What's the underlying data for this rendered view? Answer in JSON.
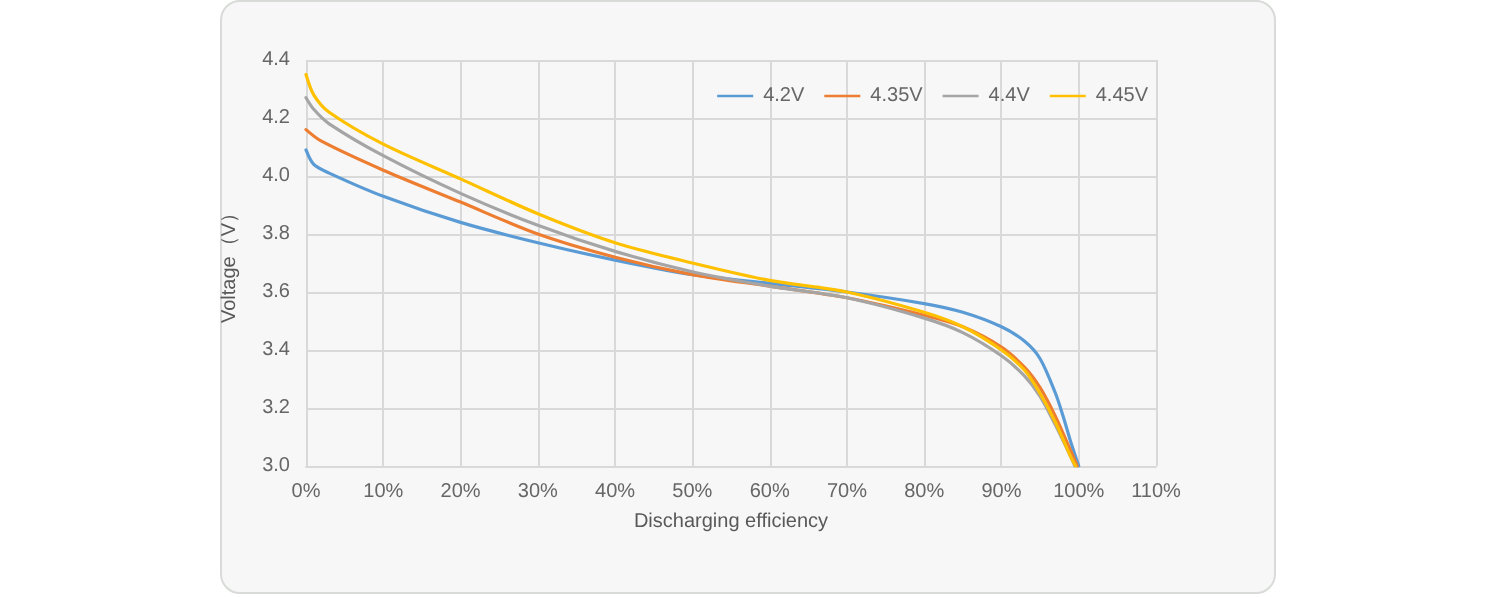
{
  "chart_data": {
    "type": "line",
    "xlabel": "Discharging efficiency",
    "ylabel": "Voltage（V）",
    "xlim": [
      0,
      110
    ],
    "xticks": [
      {
        "value": 0,
        "label": "0%"
      },
      {
        "value": 10,
        "label": "10%"
      },
      {
        "value": 20,
        "label": "20%"
      },
      {
        "value": 30,
        "label": "30%"
      },
      {
        "value": 40,
        "label": "40%"
      },
      {
        "value": 50,
        "label": "50%"
      },
      {
        "value": 60,
        "label": "60%"
      },
      {
        "value": 70,
        "label": "70%"
      },
      {
        "value": 80,
        "label": "80%"
      },
      {
        "value": 90,
        "label": "90%"
      },
      {
        "value": 100,
        "label": "100%"
      },
      {
        "value": 110,
        "label": "110%"
      }
    ],
    "ylim": [
      3.0,
      4.4
    ],
    "yticks": [
      {
        "value": 3.0,
        "label": "3.0"
      },
      {
        "value": 3.2,
        "label": "3.2"
      },
      {
        "value": 3.4,
        "label": "3.4"
      },
      {
        "value": 3.6,
        "label": "3.6"
      },
      {
        "value": 3.8,
        "label": "3.8"
      },
      {
        "value": 4.0,
        "label": "4.0"
      },
      {
        "value": 4.2,
        "label": "4.2"
      },
      {
        "value": 4.4,
        "label": "4.4"
      }
    ],
    "grid": true,
    "legend": "top right",
    "marker": "none",
    "line_style": "solid",
    "series": [
      {
        "name": "4.2V",
        "color": "#5b9bd5",
        "x": [
          0,
          1,
          3,
          10,
          20,
          30,
          40,
          50,
          60,
          70,
          80,
          85,
          90,
          93,
          95,
          97,
          98,
          99,
          100
        ],
        "values": [
          4.09,
          4.04,
          4.01,
          3.93,
          3.84,
          3.77,
          3.71,
          3.66,
          3.63,
          3.6,
          3.56,
          3.53,
          3.48,
          3.43,
          3.37,
          3.25,
          3.17,
          3.08,
          3.0
        ]
      },
      {
        "name": "4.35V",
        "color": "#ed7d31",
        "x": [
          0,
          2,
          10,
          20,
          30,
          40,
          50,
          60,
          70,
          80,
          85,
          90,
          93,
          95,
          97,
          99,
          99.8
        ],
        "values": [
          4.16,
          4.12,
          4.02,
          3.91,
          3.8,
          3.72,
          3.66,
          3.62,
          3.58,
          3.52,
          3.48,
          3.41,
          3.34,
          3.27,
          3.17,
          3.05,
          3.0
        ]
      },
      {
        "name": "4.4V",
        "color": "#a5a5a5",
        "x": [
          0,
          1,
          3,
          10,
          20,
          30,
          40,
          50,
          60,
          70,
          80,
          85,
          90,
          93,
          95,
          97,
          99,
          99.5
        ],
        "values": [
          4.27,
          4.23,
          4.18,
          4.07,
          3.94,
          3.83,
          3.74,
          3.67,
          3.62,
          3.58,
          3.51,
          3.46,
          3.38,
          3.31,
          3.24,
          3.14,
          3.03,
          3.0
        ]
      },
      {
        "name": "4.45V",
        "color": "#ffc000",
        "x": [
          0,
          1,
          3,
          10,
          20,
          30,
          40,
          50,
          60,
          70,
          80,
          85,
          90,
          93,
          95,
          97,
          99,
          99.6
        ],
        "values": [
          4.35,
          4.28,
          4.22,
          4.11,
          3.99,
          3.87,
          3.77,
          3.7,
          3.64,
          3.6,
          3.53,
          3.48,
          3.4,
          3.33,
          3.25,
          3.15,
          3.03,
          3.0
        ]
      }
    ]
  }
}
